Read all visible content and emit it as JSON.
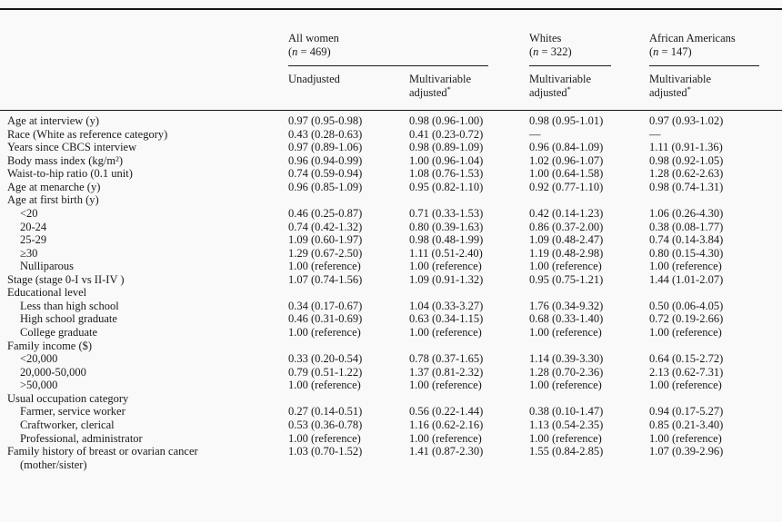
{
  "colors": {
    "background": "#f9f9f9",
    "text": "#1a1a1a",
    "rule": "#151515"
  },
  "table": {
    "columns": {
      "groups": [
        {
          "title": "All women",
          "n_open": "(",
          "n_var": "n",
          "n_rest": " = 469)"
        },
        {
          "title": "Whites",
          "n_open": "(",
          "n_var": "n",
          "n_rest": " = 322)"
        },
        {
          "title": "African Americans",
          "n_open": "(",
          "n_var": "n",
          "n_rest": " = 147)"
        }
      ],
      "subheaders": [
        {
          "line1": "Unadjusted",
          "line2": "",
          "sup": ""
        },
        {
          "line1": "Multivariable",
          "line2": "adjusted",
          "sup": "*"
        },
        {
          "line1": "Multivariable",
          "line2": "adjusted",
          "sup": "*"
        },
        {
          "line1": "Multivariable",
          "line2": "adjusted",
          "sup": "*"
        }
      ]
    },
    "rows": [
      {
        "label": "Age at interview (y)",
        "indent": 0,
        "values": [
          "0.97 (0.95-0.98)",
          "0.98 (0.96-1.00)",
          "0.98 (0.95-1.01)",
          "0.97 (0.93-1.02)"
        ]
      },
      {
        "label": "Race (White as reference category)",
        "indent": 0,
        "values": [
          "0.43 (0.28-0.63)",
          "0.41 (0.23-0.72)",
          "—",
          "—"
        ]
      },
      {
        "label": "Years since CBCS interview",
        "indent": 0,
        "values": [
          "0.97 (0.89-1.06)",
          "0.98 (0.89-1.09)",
          "0.96 (0.84-1.09)",
          "1.11 (0.91-1.36)"
        ]
      },
      {
        "label": "Body mass index (kg/m²)",
        "indent": 0,
        "values": [
          "0.96 (0.94-0.99)",
          "1.00 (0.96-1.04)",
          "1.02 (0.96-1.07)",
          "0.98 (0.92-1.05)"
        ]
      },
      {
        "label": "Waist-to-hip ratio (0.1 unit)",
        "indent": 0,
        "values": [
          "0.74 (0.59-0.94)",
          "1.08 (0.76-1.53)",
          "1.00 (0.64-1.58)",
          "1.28 (0.62-2.63)"
        ]
      },
      {
        "label": "Age at menarche (y)",
        "indent": 0,
        "values": [
          "0.96 (0.85-1.09)",
          "0.95 (0.82-1.10)",
          "0.92 (0.77-1.10)",
          "0.98 (0.74-1.31)"
        ]
      },
      {
        "label": "Age at first birth (y)",
        "indent": 0,
        "values": [
          "",
          "",
          "",
          ""
        ]
      },
      {
        "label": "<20",
        "indent": 1,
        "values": [
          "0.46 (0.25-0.87)",
          "0.71 (0.33-1.53)",
          "0.42 (0.14-1.23)",
          "1.06 (0.26-4.30)"
        ]
      },
      {
        "label": "20-24",
        "indent": 1,
        "values": [
          "0.74 (0.42-1.32)",
          "0.80 (0.39-1.63)",
          "0.86 (0.37-2.00)",
          "0.38 (0.08-1.77)"
        ]
      },
      {
        "label": "25-29",
        "indent": 1,
        "values": [
          "1.09 (0.60-1.97)",
          "0.98 (0.48-1.99)",
          "1.09 (0.48-2.47)",
          "0.74 (0.14-3.84)"
        ]
      },
      {
        "label": "≥30",
        "indent": 1,
        "values": [
          "1.29 (0.67-2.50)",
          "1.11 (0.51-2.40)",
          "1.19 (0.48-2.98)",
          "0.80 (0.15-4.30)"
        ]
      },
      {
        "label": "Nulliparous",
        "indent": 1,
        "values": [
          "1.00 (reference)",
          "1.00 (reference)",
          "1.00 (reference)",
          "1.00 (reference)"
        ]
      },
      {
        "label": "Stage (stage 0-I vs II-IV )",
        "indent": 0,
        "values": [
          "1.07 (0.74-1.56)",
          "1.09 (0.91-1.32)",
          "0.95 (0.75-1.21)",
          "1.44 (1.01-2.07)"
        ]
      },
      {
        "label": "Educational level",
        "indent": 0,
        "values": [
          "",
          "",
          "",
          ""
        ]
      },
      {
        "label": "Less than high school",
        "indent": 1,
        "values": [
          "0.34 (0.17-0.67)",
          "1.04 (0.33-3.27)",
          "1.76 (0.34-9.32)",
          "0.50 (0.06-4.05)"
        ]
      },
      {
        "label": "High school graduate",
        "indent": 1,
        "values": [
          "0.46 (0.31-0.69)",
          "0.63 (0.34-1.15)",
          "0.68 (0.33-1.40)",
          "0.72 (0.19-2.66)"
        ]
      },
      {
        "label": "College graduate",
        "indent": 1,
        "values": [
          "1.00 (reference)",
          "1.00 (reference)",
          "1.00 (reference)",
          "1.00 (reference)"
        ]
      },
      {
        "label": "Family income ($)",
        "indent": 0,
        "values": [
          "",
          "",
          "",
          ""
        ]
      },
      {
        "label": "<20,000",
        "indent": 1,
        "values": [
          "0.33 (0.20-0.54)",
          "0.78 (0.37-1.65)",
          "1.14 (0.39-3.30)",
          "0.64 (0.15-2.72)"
        ]
      },
      {
        "label": "20,000-50,000",
        "indent": 1,
        "values": [
          "0.79 (0.51-1.22)",
          "1.37 (0.81-2.32)",
          "1.28 (0.70-2.36)",
          "2.13 (0.62-7.31)"
        ]
      },
      {
        "label": ">50,000",
        "indent": 1,
        "values": [
          "1.00 (reference)",
          "1.00 (reference)",
          "1.00 (reference)",
          "1.00 (reference)"
        ]
      },
      {
        "label": "Usual occupation category",
        "indent": 0,
        "values": [
          "",
          "",
          "",
          ""
        ]
      },
      {
        "label": "Farmer, service worker",
        "indent": 1,
        "values": [
          "0.27 (0.14-0.51)",
          "0.56 (0.22-1.44)",
          "0.38 (0.10-1.47)",
          "0.94 (0.17-5.27)"
        ]
      },
      {
        "label": "Craftworker, clerical",
        "indent": 1,
        "values": [
          "0.53 (0.36-0.78)",
          "1.16 (0.62-2.16)",
          "1.13 (0.54-2.35)",
          "0.85 (0.21-3.40)"
        ]
      },
      {
        "label": "Professional, administrator",
        "indent": 1,
        "values": [
          "1.00 (reference)",
          "1.00 (reference)",
          "1.00 (reference)",
          "1.00 (reference)"
        ]
      },
      {
        "label": "Family history of breast or ovarian cancer",
        "label2": "(mother/sister)",
        "indent": 0,
        "values": [
          "1.03 (0.70-1.52)",
          "1.41 (0.87-2.30)",
          "1.55 (0.84-2.85)",
          "1.07 (0.39-2.96)"
        ]
      }
    ]
  }
}
